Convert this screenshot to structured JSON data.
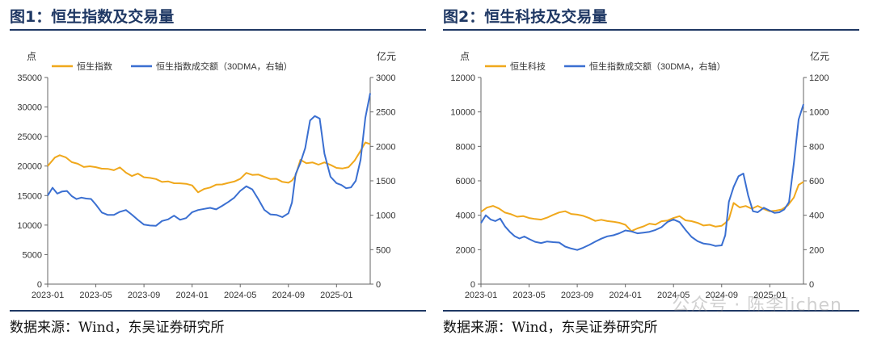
{
  "charts_text": {
    "left": {
      "title": "图1：恒生指数及交易量",
      "source": "数据来源：Wind，东吴证券研究所"
    },
    "right": {
      "title": "图2：恒生科技及交易量",
      "source": "数据来源：Wind，东吴证券研究所"
    }
  },
  "watermark": "公众号 · 陈李lichen",
  "colors": {
    "orange": "#f0a81c",
    "blue": "#3a6fd1",
    "axis": "#555555",
    "header_rule": "#1f3864"
  },
  "chart_data": [
    {
      "type": "line",
      "title": "图1：恒生指数及交易量",
      "y_left_label": "点",
      "y_right_label": "亿元",
      "y_left_lim": [
        0,
        35000
      ],
      "y_left_ticks": [
        "0",
        "5000",
        "10000",
        "15000",
        "20000",
        "25000",
        "30000",
        "35000"
      ],
      "y_right_lim": [
        0,
        3000
      ],
      "y_right_ticks": [
        "0",
        "500",
        "1000",
        "1500",
        "2000",
        "2500",
        "3000"
      ],
      "x_ticks": [
        "2023-01",
        "2023-05",
        "2023-09",
        "2024-01",
        "2024-05",
        "2024-09",
        "2025-01"
      ],
      "x_range_months": [
        0,
        26.8
      ],
      "series": [
        {
          "name": "恒生指数",
          "axis": "left",
          "color": "#f0a81c",
          "x": [
            0,
            0.6,
            1,
            1.5,
            2,
            2.5,
            3,
            3.5,
            4,
            4.5,
            5,
            5.5,
            6,
            6.5,
            7,
            7.5,
            8,
            8.5,
            9,
            9.5,
            10,
            10.5,
            11,
            11.5,
            12,
            12.5,
            13,
            13.5,
            14,
            14.5,
            15,
            15.5,
            16,
            16.5,
            17,
            17.5,
            18,
            18.5,
            19,
            19.5,
            20,
            20.3,
            20.6,
            21,
            21.5,
            22,
            22.5,
            23,
            23.5,
            24,
            24.5,
            25,
            25.5,
            26,
            26.4,
            26.8
          ],
          "values": [
            20000,
            21600,
            22000,
            21500,
            20500,
            20200,
            19800,
            20100,
            20000,
            19600,
            19400,
            19100,
            19700,
            19000,
            18500,
            18800,
            18000,
            17800,
            17700,
            17400,
            17600,
            17200,
            17000,
            16800,
            16600,
            15600,
            16300,
            16500,
            16800,
            16700,
            17000,
            17400,
            18000,
            19000,
            18500,
            18400,
            18000,
            17800,
            18000,
            17500,
            17200,
            17400,
            18200,
            21000,
            20600,
            20800,
            20300,
            20500,
            20000,
            19600,
            19700,
            20000,
            21000,
            22500,
            23800,
            23600
          ]
        },
        {
          "name": "恒生指数成交额（30DMA，右轴）",
          "axis": "right",
          "color": "#3a6fd1",
          "x": [
            0,
            0.4,
            0.8,
            1.2,
            1.6,
            2,
            2.4,
            2.8,
            3.2,
            3.6,
            4,
            4.5,
            5,
            5.5,
            6,
            6.5,
            7,
            7.5,
            8,
            8.5,
            9,
            9.5,
            10,
            10.5,
            11,
            11.5,
            12,
            12.5,
            13,
            13.5,
            14,
            14.5,
            15,
            15.5,
            16,
            16.5,
            17,
            17.5,
            18,
            18.5,
            19,
            19.5,
            20,
            20.3,
            20.6,
            21,
            21.4,
            21.8,
            22.2,
            22.6,
            23,
            23.5,
            24,
            24.4,
            24.8,
            25.2,
            25.6,
            26,
            26.4,
            26.8
          ],
          "values": [
            1300,
            1400,
            1300,
            1330,
            1350,
            1290,
            1250,
            1260,
            1230,
            1220,
            1150,
            1050,
            1020,
            1010,
            1040,
            1060,
            1000,
            940,
            880,
            860,
            840,
            900,
            930,
            1000,
            950,
            970,
            1040,
            1060,
            1080,
            1110,
            1100,
            1150,
            1190,
            1240,
            1340,
            1420,
            1390,
            1250,
            1080,
            1000,
            990,
            970,
            1040,
            1200,
            1600,
            1750,
            1960,
            2370,
            2450,
            2420,
            1900,
            1550,
            1450,
            1430,
            1400,
            1420,
            1510,
            1800,
            2400,
            2760
          ]
        }
      ]
    },
    {
      "type": "line",
      "title": "图2：恒生科技及交易量",
      "y_left_label": "点",
      "y_right_label": "亿元",
      "y_left_lim": [
        0,
        12000
      ],
      "y_left_ticks": [
        "0",
        "2000",
        "4000",
        "6000",
        "8000",
        "10000",
        "12000"
      ],
      "y_right_lim": [
        0,
        1200
      ],
      "y_right_ticks": [
        "0",
        "200",
        "400",
        "600",
        "800",
        "1000",
        "1200"
      ],
      "x_ticks": [
        "2023-01",
        "2023-05",
        "2023-09",
        "2024-01",
        "2024-05",
        "2024-09",
        "2025-01"
      ],
      "x_range_months": [
        0,
        26.8
      ],
      "series": [
        {
          "name": "恒生科技",
          "axis": "left",
          "color": "#f0a81c",
          "x": [
            0,
            0.5,
            1,
            1.5,
            2,
            2.5,
            3,
            3.5,
            4,
            4.5,
            5,
            5.5,
            6,
            6.5,
            7,
            7.5,
            8,
            8.5,
            9,
            9.5,
            10,
            10.5,
            11,
            11.5,
            12,
            12.5,
            13,
            13.5,
            14,
            14.5,
            15,
            15.5,
            16,
            16.5,
            17,
            17.5,
            18,
            18.5,
            19,
            19.5,
            20,
            20.3,
            20.6,
            21,
            21.5,
            22,
            22.5,
            23,
            23.5,
            24,
            24.5,
            25,
            25.5,
            26,
            26.4,
            26.8
          ],
          "values": [
            4200,
            4500,
            4600,
            4400,
            4100,
            4000,
            3900,
            4000,
            3900,
            3800,
            3700,
            3800,
            4000,
            4200,
            4300,
            4100,
            4000,
            3900,
            3800,
            3700,
            3800,
            3700,
            3600,
            3500,
            3400,
            3100,
            3300,
            3400,
            3500,
            3400,
            3600,
            3700,
            3900,
            4000,
            3700,
            3600,
            3500,
            3400,
            3500,
            3400,
            3400,
            3500,
            3700,
            4700,
            4500,
            4600,
            4400,
            4500,
            4300,
            4200,
            4300,
            4400,
            4600,
            5000,
            5700,
            5900
          ]
        },
        {
          "name": "恒生指数成交额（30DMA，右轴）",
          "axis": "right",
          "color": "#3a6fd1",
          "x": [
            0,
            0.4,
            0.8,
            1.2,
            1.6,
            2,
            2.4,
            2.8,
            3.2,
            3.6,
            4,
            4.5,
            5,
            5.5,
            6,
            6.5,
            7,
            7.5,
            8,
            8.5,
            9,
            9.5,
            10,
            10.5,
            11,
            11.5,
            12,
            12.5,
            13,
            13.5,
            14,
            14.5,
            15,
            15.5,
            16,
            16.5,
            17,
            17.5,
            18,
            18.5,
            19,
            19.5,
            20,
            20.3,
            20.6,
            21,
            21.4,
            21.8,
            22.2,
            22.6,
            23,
            23.5,
            24,
            24.4,
            24.8,
            25.2,
            25.6,
            26,
            26.4,
            26.8
          ],
          "values": [
            360,
            400,
            370,
            360,
            380,
            340,
            310,
            280,
            260,
            270,
            260,
            250,
            245,
            250,
            240,
            235,
            215,
            210,
            205,
            215,
            225,
            240,
            260,
            280,
            290,
            300,
            310,
            300,
            290,
            300,
            310,
            320,
            330,
            355,
            370,
            360,
            320,
            280,
            250,
            230,
            225,
            220,
            230,
            290,
            480,
            560,
            620,
            640,
            520,
            430,
            420,
            440,
            420,
            410,
            420,
            440,
            480,
            700,
            950,
            1040
          ]
        }
      ]
    }
  ]
}
